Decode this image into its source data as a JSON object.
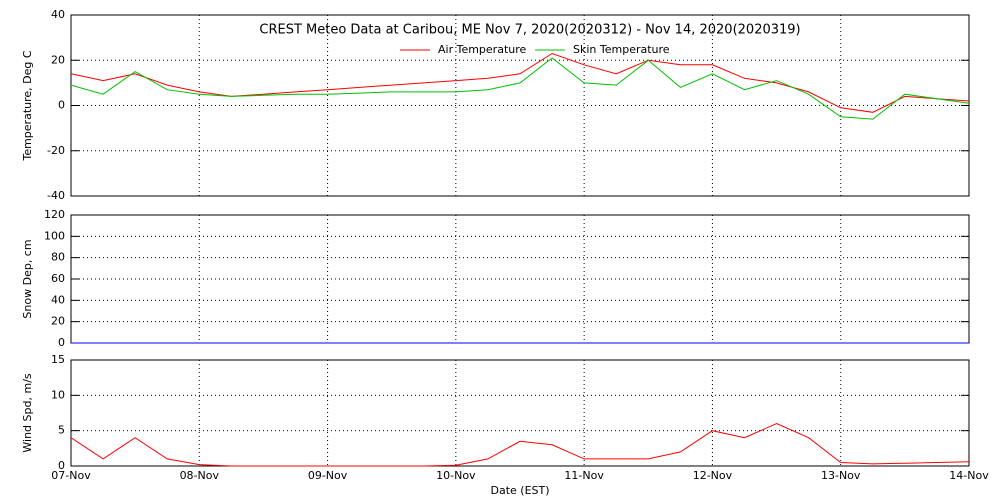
{
  "chart_data": [
    {
      "type": "line",
      "title": "CREST Meteo Data at Caribou, ME   Nov  7, 2020(2020312) - Nov 14, 2020(2020319)",
      "y_label": "Temperature, Deg C",
      "x": [
        0,
        0.25,
        0.5,
        0.75,
        1,
        1.25,
        1.5,
        1.75,
        2,
        2.25,
        2.5,
        2.75,
        3,
        3.25,
        3.5,
        3.75,
        4,
        4.25,
        4.5,
        4.75,
        5,
        5.25,
        5.5,
        5.75,
        6,
        6.25,
        6.5,
        6.75,
        7
      ],
      "series": [
        {
          "name": "Air Temperature",
          "color": "#ff0000",
          "values": [
            14,
            11,
            14,
            9,
            6,
            4,
            5,
            6,
            7,
            8,
            9,
            10,
            11,
            12,
            14,
            23,
            18,
            14,
            20,
            18,
            18,
            12,
            10,
            6,
            -1,
            -3,
            4,
            3,
            2
          ]
        },
        {
          "name": "Skin Temperature",
          "color": "#00c000",
          "values": [
            9,
            5,
            15,
            7,
            5,
            4,
            4.5,
            5,
            5,
            5.5,
            6,
            6,
            6,
            7,
            10,
            21,
            10,
            9,
            20,
            8,
            14,
            7,
            11,
            5,
            -5,
            -6,
            5,
            3,
            1
          ]
        }
      ],
      "xlim": [
        0,
        7
      ],
      "xticks": [
        0,
        1,
        2,
        3,
        4,
        5,
        6,
        7
      ],
      "ylim": [
        -40,
        40
      ],
      "yticks": [
        -40,
        -20,
        0,
        20,
        40
      ],
      "grid": true
    },
    {
      "type": "line",
      "y_label": "Snow Dep, cm",
      "x": [
        0,
        0.25,
        0.5,
        0.75,
        1,
        1.25,
        1.5,
        1.75,
        2,
        2.25,
        2.5,
        2.75,
        3,
        3.25,
        3.5,
        3.75,
        4,
        4.25,
        4.5,
        4.75,
        5,
        5.25,
        5.5,
        5.75,
        6,
        6.25,
        6.5,
        6.75,
        7
      ],
      "series": [
        {
          "color": "#0000ff",
          "values": [
            0,
            0,
            0,
            0,
            0,
            0,
            0,
            0,
            0,
            0,
            0,
            0,
            0,
            0,
            0,
            0,
            0,
            0,
            0,
            0,
            0,
            0,
            0,
            0,
            0,
            0,
            0,
            0,
            0
          ]
        }
      ],
      "xlim": [
        0,
        7
      ],
      "xticks": [
        0,
        1,
        2,
        3,
        4,
        5,
        6,
        7
      ],
      "ylim": [
        0,
        120
      ],
      "yticks": [
        0,
        20,
        40,
        60,
        80,
        100,
        120
      ],
      "grid": true
    },
    {
      "type": "line",
      "y_label": "Wind Spd, m/s",
      "x_label": "Date (EST)",
      "x": [
        0,
        0.25,
        0.5,
        0.75,
        1,
        1.25,
        1.5,
        1.75,
        2,
        2.25,
        2.5,
        2.75,
        3,
        3.25,
        3.5,
        3.75,
        4,
        4.25,
        4.5,
        4.75,
        5,
        5.25,
        5.5,
        5.75,
        6,
        6.25,
        6.5,
        6.75,
        7
      ],
      "series": [
        {
          "color": "#ff0000",
          "values": [
            4,
            1,
            4,
            1,
            0.2,
            0,
            0,
            0,
            0,
            0,
            0,
            0,
            0.1,
            1,
            3.5,
            3,
            1,
            1,
            1,
            2,
            5,
            4,
            6,
            4,
            0.5,
            0.3,
            0.4,
            0.5,
            0.6
          ]
        }
      ],
      "xlim": [
        0,
        7
      ],
      "xticks": [
        {
          "value": 0,
          "label": "07-Nov"
        },
        {
          "value": 1,
          "label": "08-Nov"
        },
        {
          "value": 2,
          "label": "09-Nov"
        },
        {
          "value": 3,
          "label": "10-Nov"
        },
        {
          "value": 4,
          "label": "11-Nov"
        },
        {
          "value": 5,
          "label": "12-Nov"
        },
        {
          "value": 6,
          "label": "13-Nov"
        },
        {
          "value": 7,
          "label": "14-Nov"
        }
      ],
      "ylim": [
        0,
        15
      ],
      "yticks": [
        0,
        5,
        10,
        15
      ],
      "grid": true
    }
  ]
}
